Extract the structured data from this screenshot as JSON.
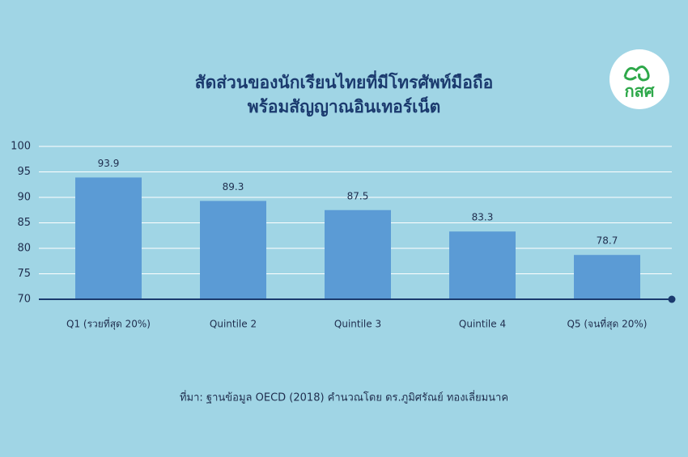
{
  "chart_data": {
    "type": "bar",
    "title": [
      "สัดส่วนของนักเรียนไทยที่มีโทรศัพท์มือถือ",
      "พร้อมสัญญาณอินเทอร์เน็ต"
    ],
    "categories": [
      "Q1 (รวยที่สุด 20%)",
      "Quintile 2",
      "Quintile 3",
      "Quintile 4",
      "Q5 (จนที่สุด 20%)"
    ],
    "values": [
      93.9,
      89.3,
      87.5,
      83.3,
      78.7
    ],
    "color": "#5b9bd5",
    "ylim": [
      70,
      100
    ],
    "yticks": [
      70,
      75,
      80,
      85,
      90,
      95,
      100
    ],
    "grid": true,
    "source": "ที่มา: ฐานข้อมูล OECD (2018) คำนวณโดย ดร.ภูมิศรัณย์ ทองเลี่ยมนาค"
  },
  "logo": {
    "text": "กสศ"
  }
}
